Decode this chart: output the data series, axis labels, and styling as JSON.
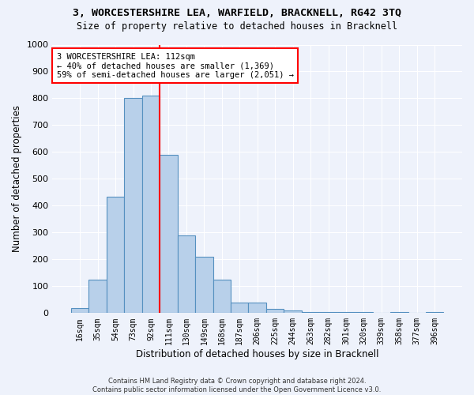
{
  "title": "3, WORCESTERSHIRE LEA, WARFIELD, BRACKNELL, RG42 3TQ",
  "subtitle": "Size of property relative to detached houses in Bracknell",
  "xlabel": "Distribution of detached houses by size in Bracknell",
  "ylabel": "Number of detached properties",
  "bar_labels": [
    "16sqm",
    "35sqm",
    "54sqm",
    "73sqm",
    "92sqm",
    "111sqm",
    "130sqm",
    "149sqm",
    "168sqm",
    "187sqm",
    "206sqm",
    "225sqm",
    "244sqm",
    "263sqm",
    "282sqm",
    "301sqm",
    "320sqm",
    "339sqm",
    "358sqm",
    "377sqm",
    "396sqm"
  ],
  "bar_values": [
    20,
    125,
    435,
    800,
    810,
    590,
    290,
    210,
    125,
    40,
    40,
    15,
    10,
    5,
    5,
    5,
    5,
    0,
    5,
    0,
    5
  ],
  "bar_color": "#b8d0ea",
  "bar_edge_color": "#5590c0",
  "vline_index": 5,
  "vline_color": "red",
  "annotation_text": "3 WORCESTERSHIRE LEA: 112sqm\n← 40% of detached houses are smaller (1,369)\n59% of semi-detached houses are larger (2,051) →",
  "annotation_box_color": "white",
  "annotation_box_edge": "red",
  "ylim": [
    0,
    1000
  ],
  "yticks": [
    0,
    100,
    200,
    300,
    400,
    500,
    600,
    700,
    800,
    900,
    1000
  ],
  "footnote": "Contains HM Land Registry data © Crown copyright and database right 2024.\nContains public sector information licensed under the Open Government Licence v3.0.",
  "background_color": "#eef2fb",
  "grid_color": "white"
}
